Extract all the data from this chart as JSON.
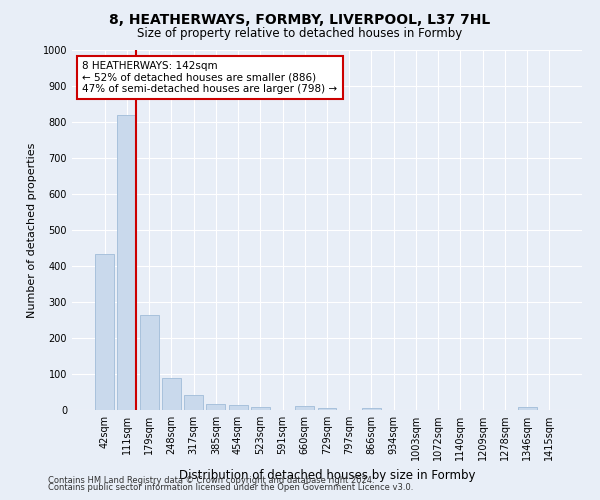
{
  "title_line1": "8, HEATHERWAYS, FORMBY, LIVERPOOL, L37 7HL",
  "title_line2": "Size of property relative to detached houses in Formby",
  "xlabel": "Distribution of detached houses by size in Formby",
  "ylabel": "Number of detached properties",
  "bin_labels": [
    "42sqm",
    "111sqm",
    "179sqm",
    "248sqm",
    "317sqm",
    "385sqm",
    "454sqm",
    "523sqm",
    "591sqm",
    "660sqm",
    "729sqm",
    "797sqm",
    "866sqm",
    "934sqm",
    "1003sqm",
    "1072sqm",
    "1140sqm",
    "1209sqm",
    "1278sqm",
    "1346sqm",
    "1415sqm"
  ],
  "bar_heights": [
    432,
    820,
    265,
    90,
    42,
    18,
    13,
    7,
    0,
    10,
    5,
    0,
    5,
    0,
    0,
    0,
    0,
    0,
    0,
    7,
    0
  ],
  "bar_color": "#c9d9ec",
  "bar_edge_color": "#a0bcd8",
  "property_bin_index": 1,
  "annotation_text": "8 HEATHERWAYS: 142sqm\n← 52% of detached houses are smaller (886)\n47% of semi-detached houses are larger (798) →",
  "annotation_box_color": "#ffffff",
  "annotation_box_edge_color": "#cc0000",
  "vline_color": "#cc0000",
  "ylim": [
    0,
    1000
  ],
  "yticks": [
    0,
    100,
    200,
    300,
    400,
    500,
    600,
    700,
    800,
    900,
    1000
  ],
  "footer_line1": "Contains HM Land Registry data © Crown copyright and database right 2024.",
  "footer_line2": "Contains public sector information licensed under the Open Government Licence v3.0.",
  "background_color": "#e8eef7",
  "plot_background_color": "#e8eef7",
  "grid_color": "#ffffff",
  "title1_fontsize": 10,
  "title2_fontsize": 8.5,
  "ylabel_fontsize": 8,
  "xlabel_fontsize": 8.5,
  "tick_fontsize": 7,
  "annot_fontsize": 7.5,
  "footer_fontsize": 6
}
